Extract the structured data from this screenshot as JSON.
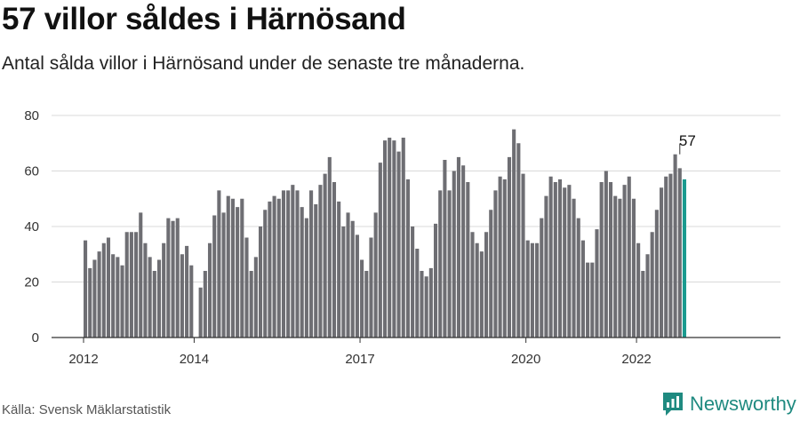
{
  "header": {
    "title": "57 villor såldes i Härnösand",
    "subtitle": "Antal sålda villor i Härnösand under de senaste tre månaderna."
  },
  "footer": {
    "source": "Källa: Svensk Mäklarstatistik",
    "brand": "Newsworthy",
    "brand_icon": "newsworthy-logo-icon"
  },
  "colors": {
    "bar": "#6e6e73",
    "highlight": "#1a9a8f",
    "grid": "#d9d9d9",
    "axis": "#333333",
    "brand": "#1f8a80"
  },
  "chart_data": {
    "type": "bar",
    "title": "57 villor såldes i Härnösand",
    "subtitle": "Antal sålda villor i Härnösand under de senaste tre månaderna.",
    "xlabel": "",
    "ylabel": "",
    "ylim": [
      0,
      80
    ],
    "yticks": [
      0,
      20,
      40,
      60,
      80
    ],
    "grid": true,
    "x_tick_labels": [
      "2012",
      "2014",
      "2017",
      "2020",
      "2022"
    ],
    "first_period": "2012-01",
    "frequency": "monthly",
    "highlight_last": true,
    "highlight_label": "57",
    "values": [
      35,
      25,
      28,
      31,
      34,
      36,
      30,
      29,
      26,
      38,
      38,
      38,
      45,
      34,
      29,
      24,
      28,
      34,
      43,
      42,
      43,
      30,
      33,
      26,
      0,
      18,
      24,
      34,
      44,
      53,
      45,
      51,
      50,
      47,
      50,
      36,
      24,
      29,
      40,
      46,
      49,
      51,
      50,
      53,
      53,
      55,
      53,
      47,
      43,
      53,
      48,
      55,
      59,
      65,
      56,
      49,
      40,
      45,
      42,
      37,
      28,
      24,
      36,
      45,
      63,
      71,
      72,
      71,
      67,
      72,
      57,
      40,
      32,
      24,
      22,
      25,
      41,
      53,
      64,
      53,
      60,
      65,
      62,
      56,
      38,
      34,
      31,
      38,
      46,
      53,
      58,
      57,
      65,
      75,
      70,
      59,
      35,
      34,
      34,
      43,
      51,
      58,
      56,
      57,
      54,
      55,
      50,
      43,
      35,
      27,
      27,
      39,
      56,
      60,
      56,
      51,
      50,
      55,
      58,
      50,
      34,
      24,
      30,
      38,
      46,
      54,
      58,
      59,
      66,
      61,
      57
    ]
  }
}
